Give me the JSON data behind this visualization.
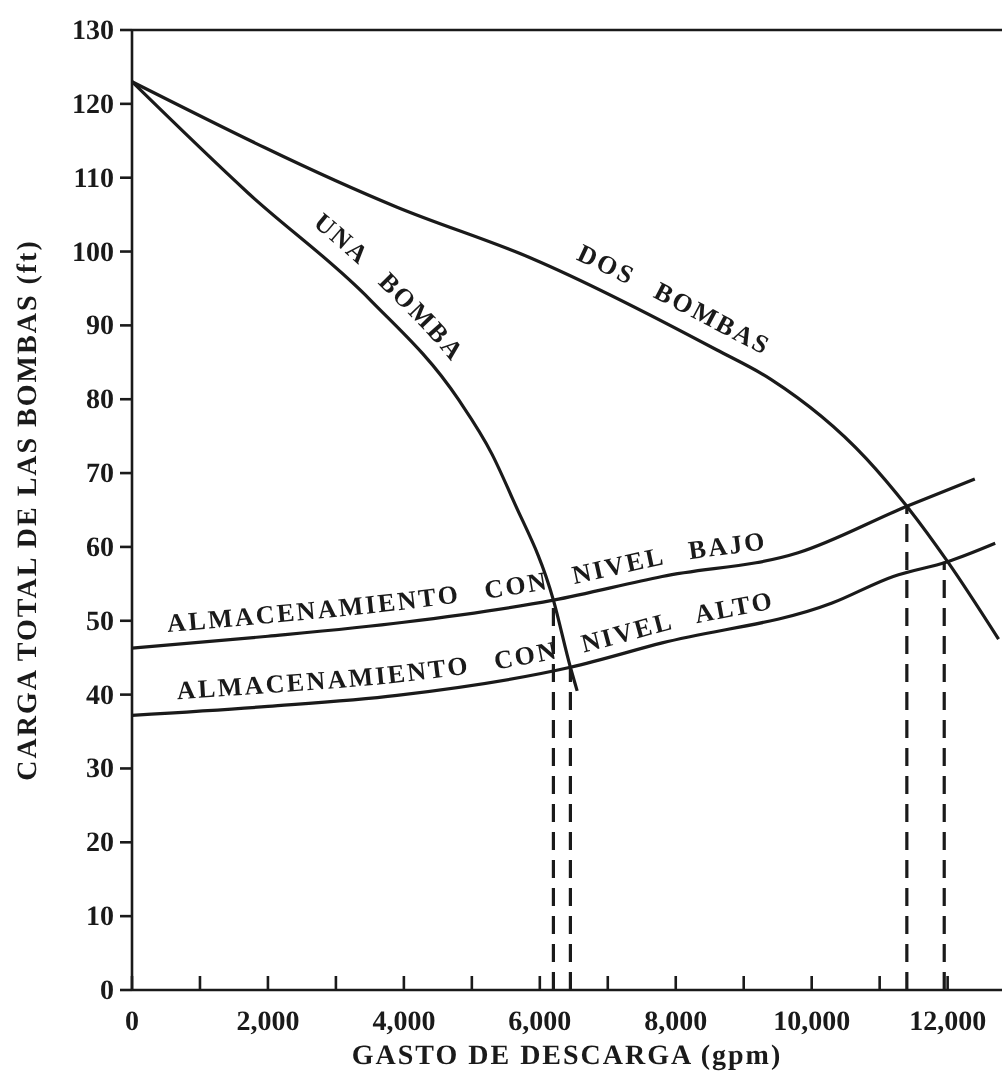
{
  "chart_data": {
    "type": "line",
    "xlabel": "GASTO DE DESCARGA (gpm)",
    "ylabel": "CARGA TOTAL DE LAS BOMBAS (ft)",
    "xlim": [
      0,
      12800
    ],
    "ylim": [
      0,
      130
    ],
    "xticks": [
      {
        "value": 0,
        "label": "0"
      },
      {
        "value": 1000,
        "label": null
      },
      {
        "value": 2000,
        "label": "2,000"
      },
      {
        "value": 3000,
        "label": null
      },
      {
        "value": 4000,
        "label": "4,000"
      },
      {
        "value": 5000,
        "label": null
      },
      {
        "value": 6000,
        "label": "6,000"
      },
      {
        "value": 7000,
        "label": null
      },
      {
        "value": 8000,
        "label": "8,000"
      },
      {
        "value": 9000,
        "label": null
      },
      {
        "value": 10000,
        "label": "10,000"
      },
      {
        "value": 11000,
        "label": null
      },
      {
        "value": 12000,
        "label": "12,000"
      }
    ],
    "yticks": [
      0,
      10,
      20,
      30,
      40,
      50,
      60,
      70,
      80,
      90,
      100,
      110,
      120,
      130
    ],
    "grid": false,
    "marker": "none",
    "series": [
      {
        "name": "UNA BOMBA",
        "color": "#1a1a1a",
        "x": [
          0,
          1700,
          3500,
          4800,
          5300,
          5600,
          6200,
          6450,
          6550
        ],
        "values": [
          123,
          108,
          93.5,
          80,
          72.5,
          66.5,
          52.8,
          43.7,
          40.5
        ]
      },
      {
        "name": "DOS BOMBAS",
        "color": "#1a1a1a",
        "x": [
          0,
          3900,
          5900,
          8600,
          9400,
          10800,
          11400,
          12000,
          12750
        ],
        "values": [
          123,
          106,
          99,
          86.7,
          82.7,
          72,
          65.5,
          58,
          47.5
        ]
      },
      {
        "name": "ALMACENAMIENTO CON NIVEL BAJO",
        "color": "#1a1a1a",
        "x": [
          0,
          2000,
          4000,
          6200,
          7800,
          9800,
          11400,
          12400
        ],
        "values": [
          46.3,
          47.9,
          49.8,
          52.8,
          56,
          59.2,
          65.5,
          69.2
        ]
      },
      {
        "name": "ALMACENAMIENTO CON NIVEL ALTO",
        "color": "#1a1a1a",
        "x": [
          0,
          2000,
          3900,
          6450,
          7800,
          10300,
          11200,
          12000,
          12700
        ],
        "values": [
          37.2,
          38.4,
          39.9,
          43.7,
          47,
          52.4,
          56,
          58,
          60.5
        ]
      },
      {
        "color": "#1a1a1a",
        "line_style": "dashed",
        "x": [
          6200,
          6200
        ],
        "values": [
          0,
          52.8
        ]
      },
      {
        "color": "#1a1a1a",
        "line_style": "dashed",
        "x": [
          6450,
          6450
        ],
        "values": [
          0,
          43.7
        ]
      },
      {
        "color": "#1a1a1a",
        "line_style": "dashed",
        "x": [
          11400,
          11400
        ],
        "values": [
          0,
          65.5
        ]
      },
      {
        "color": "#1a1a1a",
        "line_style": "dashed",
        "x": [
          11950,
          11950
        ],
        "values": [
          0,
          58
        ]
      }
    ]
  }
}
